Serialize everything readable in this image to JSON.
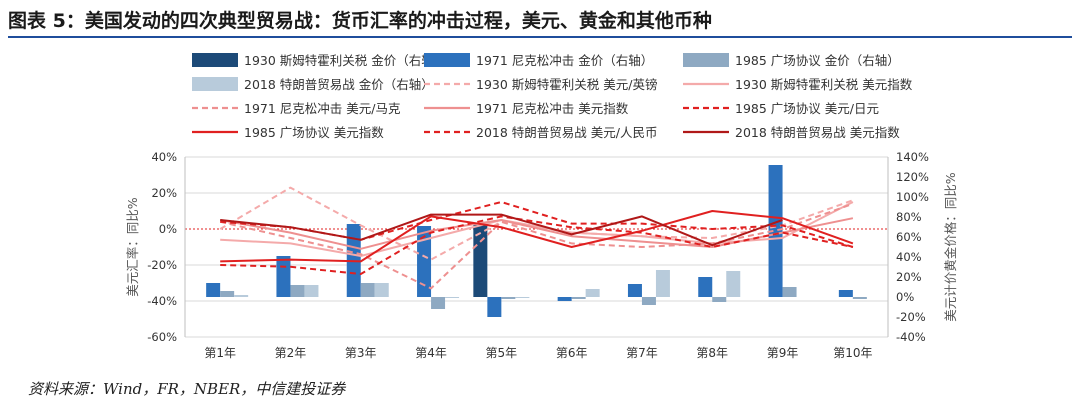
{
  "page": {
    "title": "图表 5：美国发动的四次典型贸易战：货币汇率的冲击过程，美元、黄金和其他币种",
    "source": "资料来源：Wind，FR，NBER，中信建投证券"
  },
  "colors": {
    "bar_1930": "#1c4a78",
    "bar_1971": "#2c71bd",
    "bar_1985": "#8ea9c2",
    "bar_2018": "#b8cbdb",
    "line_red": "#e02020",
    "line_pink_light": "#f4aaaa",
    "line_pink_mid": "#ee9090",
    "line_dark_red": "#b01818",
    "zero_line": "#e02020",
    "grid": "#d9d9d9"
  },
  "chart_data": {
    "type": "bar",
    "categories": [
      "第1年",
      "第2年",
      "第3年",
      "第4年",
      "第5年",
      "第6年",
      "第7年",
      "第8年",
      "第9年",
      "第10年"
    ],
    "left_axis": {
      "ylim": [
        -60,
        40
      ],
      "ticks": [
        -60,
        -40,
        -20,
        0,
        20,
        40
      ],
      "ylabel": "美元汇率：同比%"
    },
    "right_axis": {
      "ylim": [
        -40,
        140
      ],
      "ticks": [
        -40,
        -20,
        0,
        20,
        40,
        60,
        80,
        100,
        120,
        140
      ],
      "ylabel": "美元计价黄金价格：同比%"
    },
    "legend": {
      "placement": "top"
    },
    "bar_series": [
      {
        "name": "1930 斯姆特霍利关税 金价（右轴）",
        "color_key": "bar_1930",
        "values": [
          null,
          null,
          null,
          null,
          72,
          null,
          null,
          null,
          null,
          null
        ]
      },
      {
        "name": "1971 尼克松冲击 金价（右轴）",
        "color_key": "bar_1971",
        "values": [
          14,
          41,
          73,
          71,
          -20,
          -4,
          13,
          20,
          132,
          7
        ]
      },
      {
        "name": "1985 广场协议 金价（右轴）",
        "color_key": "bar_1985",
        "values": [
          6,
          12,
          14,
          -12,
          -2,
          -2,
          -8,
          -5,
          10,
          -2
        ]
      },
      {
        "name": "2018 特朗普贸易战 金价（右轴）",
        "color_key": "bar_2018",
        "values": [
          2,
          12,
          14,
          0,
          0,
          8,
          27,
          26,
          null,
          null
        ]
      }
    ],
    "line_series": [
      {
        "name": "1930 斯姆特霍利关税 美元/英镑",
        "color_key": "line_pink_light",
        "dash": true,
        "values": [
          0,
          23,
          2,
          -17,
          4,
          -2,
          -4,
          -5,
          2,
          16
        ]
      },
      {
        "name": "1930 斯姆特霍利关税 美元指数",
        "color_key": "line_pink_light",
        "dash": false,
        "values": [
          -6,
          -8,
          -15,
          -5,
          5,
          -2,
          -4,
          -8,
          -5,
          15
        ]
      },
      {
        "name": "1971 尼克松冲击 美元/马克",
        "color_key": "line_pink_mid",
        "dash": true,
        "values": [
          4,
          -5,
          -14,
          -33,
          4,
          -8,
          -10,
          -8,
          0,
          14
        ]
      },
      {
        "name": "1971 尼克松冲击 美元指数",
        "color_key": "line_pink_mid",
        "dash": false,
        "values": [
          5,
          -2,
          -11,
          -1,
          5,
          -4,
          -7,
          -10,
          -2,
          6
        ]
      },
      {
        "name": "1985 广场协议 美元/日元",
        "color_key": "line_red",
        "dash": true,
        "values": [
          -20,
          -21,
          -25,
          -2,
          7,
          1,
          -2,
          -10,
          -2,
          -10
        ]
      },
      {
        "name": "1985 广场协议 美元指数",
        "color_key": "line_red",
        "dash": false,
        "values": [
          -18,
          -17,
          -18,
          7,
          1,
          -10,
          -1,
          10,
          6,
          -8
        ]
      },
      {
        "name": "2018 特朗普贸易战 美元/人民币",
        "color_key": "line_red",
        "dash": true,
        "values": [
          4,
          1,
          -6,
          5,
          15,
          3,
          3,
          0,
          2,
          -10
        ]
      },
      {
        "name": "2018 特朗普贸易战 美元指数",
        "color_key": "line_dark_red",
        "dash": false,
        "values": [
          5,
          1,
          -6,
          8,
          8,
          -3,
          7,
          -9,
          5,
          null
        ]
      }
    ]
  }
}
